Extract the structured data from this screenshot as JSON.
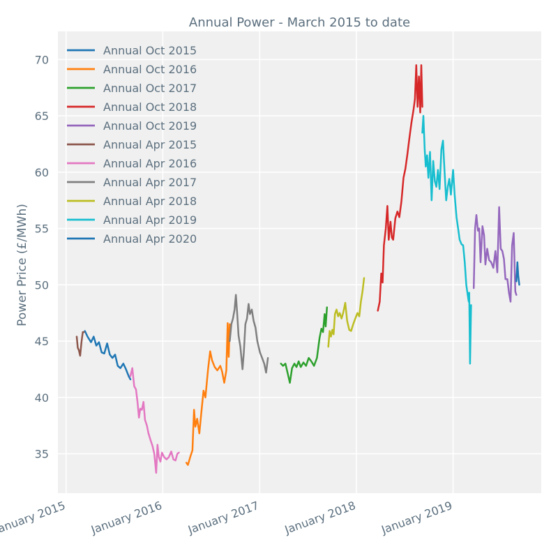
{
  "chart_data": {
    "type": "line",
    "title": "Annual Power - March 2015 to date",
    "xlabel": "",
    "ylabel": "Power Price (£/MWh)",
    "ylim": [
      31.5,
      72.5
    ],
    "yticks": [
      35,
      40,
      45,
      50,
      55,
      60,
      65,
      70
    ],
    "xlim": [
      "2014-12-01",
      "2019-11-30"
    ],
    "xticks": [
      {
        "date": "2015-01-01",
        "label": "January 2015"
      },
      {
        "date": "2016-01-01",
        "label": "January 2016"
      },
      {
        "date": "2017-01-01",
        "label": "January 2017"
      },
      {
        "date": "2018-01-01",
        "label": "January 2018"
      },
      {
        "date": "2019-01-01",
        "label": "January 2019"
      }
    ],
    "grid": true,
    "legend_position": "top-left",
    "series": [
      {
        "name": "Annual Oct 2015",
        "color": "#1f77b4",
        "points": [
          [
            "2015-03-13",
            45.9
          ],
          [
            "2015-03-23",
            45.4
          ],
          [
            "2015-04-05",
            44.9
          ],
          [
            "2015-04-15",
            45.4
          ],
          [
            "2015-04-25",
            44.6
          ],
          [
            "2015-05-05",
            44.9
          ],
          [
            "2015-05-15",
            44.0
          ],
          [
            "2015-05-25",
            43.9
          ],
          [
            "2015-06-05",
            44.8
          ],
          [
            "2015-06-15",
            43.8
          ],
          [
            "2015-06-25",
            43.5
          ],
          [
            "2015-07-05",
            43.8
          ],
          [
            "2015-07-15",
            42.8
          ],
          [
            "2015-07-25",
            42.6
          ],
          [
            "2015-08-05",
            43.0
          ],
          [
            "2015-08-15",
            42.5
          ],
          [
            "2015-08-25",
            41.9
          ],
          [
            "2015-09-01",
            41.6
          ]
        ]
      },
      {
        "name": "Annual Oct 2016",
        "color": "#ff7f0e",
        "points": [
          [
            "2016-03-30",
            34.2
          ],
          [
            "2016-04-05",
            34.0
          ],
          [
            "2016-04-15",
            34.8
          ],
          [
            "2016-04-22",
            35.3
          ],
          [
            "2016-04-28",
            38.9
          ],
          [
            "2016-05-03",
            37.4
          ],
          [
            "2016-05-10",
            38.1
          ],
          [
            "2016-05-18",
            36.8
          ],
          [
            "2016-05-25",
            38.5
          ],
          [
            "2016-06-03",
            40.6
          ],
          [
            "2016-06-10",
            40.0
          ],
          [
            "2016-06-20",
            42.5
          ],
          [
            "2016-06-28",
            44.1
          ],
          [
            "2016-07-05",
            43.3
          ],
          [
            "2016-07-15",
            42.7
          ],
          [
            "2016-07-25",
            42.4
          ],
          [
            "2016-08-05",
            42.8
          ],
          [
            "2016-08-12",
            42.3
          ],
          [
            "2016-08-20",
            41.3
          ],
          [
            "2016-08-28",
            42.4
          ],
          [
            "2016-09-02",
            46.6
          ],
          [
            "2016-09-06",
            43.6
          ],
          [
            "2016-09-10",
            46.5
          ]
        ]
      },
      {
        "name": "Annual Oct 2017",
        "color": "#2ca02c",
        "points": [
          [
            "2017-03-22",
            43.0
          ],
          [
            "2017-03-30",
            42.8
          ],
          [
            "2017-04-08",
            43.0
          ],
          [
            "2017-04-18",
            42.0
          ],
          [
            "2017-04-25",
            41.3
          ],
          [
            "2017-05-03",
            42.6
          ],
          [
            "2017-05-12",
            43.0
          ],
          [
            "2017-05-20",
            42.7
          ],
          [
            "2017-05-28",
            43.2
          ],
          [
            "2017-06-05",
            42.7
          ],
          [
            "2017-06-15",
            43.1
          ],
          [
            "2017-06-25",
            42.8
          ],
          [
            "2017-07-05",
            43.5
          ],
          [
            "2017-07-15",
            43.2
          ],
          [
            "2017-07-25",
            42.8
          ],
          [
            "2017-08-05",
            43.5
          ],
          [
            "2017-08-15",
            45.3
          ],
          [
            "2017-08-22",
            46.1
          ],
          [
            "2017-08-28",
            45.8
          ],
          [
            "2017-09-03",
            47.4
          ],
          [
            "2017-09-07",
            46.3
          ],
          [
            "2017-09-12",
            48.0
          ]
        ]
      },
      {
        "name": "Annual Oct 2018",
        "color": "#d62728",
        "points": [
          [
            "2018-03-23",
            47.7
          ],
          [
            "2018-03-30",
            48.5
          ],
          [
            "2018-04-05",
            51.0
          ],
          [
            "2018-04-10",
            50.2
          ],
          [
            "2018-04-15",
            53.5
          ],
          [
            "2018-04-22",
            55.0
          ],
          [
            "2018-04-28",
            57.0
          ],
          [
            "2018-05-03",
            54.0
          ],
          [
            "2018-05-10",
            55.6
          ],
          [
            "2018-05-15",
            54.2
          ],
          [
            "2018-05-20",
            54.0
          ],
          [
            "2018-05-28",
            55.9
          ],
          [
            "2018-06-05",
            56.5
          ],
          [
            "2018-06-12",
            56.0
          ],
          [
            "2018-06-20",
            57.4
          ],
          [
            "2018-06-28",
            59.5
          ],
          [
            "2018-07-05",
            60.3
          ],
          [
            "2018-07-12",
            61.5
          ],
          [
            "2018-07-20",
            63.0
          ],
          [
            "2018-07-28",
            64.4
          ],
          [
            "2018-08-05",
            65.6
          ],
          [
            "2018-08-10",
            66.5
          ],
          [
            "2018-08-15",
            69.5
          ],
          [
            "2018-08-20",
            65.8
          ],
          [
            "2018-08-25",
            68.5
          ],
          [
            "2018-08-30",
            65.3
          ],
          [
            "2018-09-03",
            69.5
          ],
          [
            "2018-09-07",
            65.8
          ]
        ]
      },
      {
        "name": "Annual Oct 2019",
        "color": "#9467bd",
        "points": [
          [
            "2019-03-20",
            49.7
          ],
          [
            "2019-03-25",
            55.0
          ],
          [
            "2019-03-30",
            56.2
          ],
          [
            "2019-04-05",
            54.8
          ],
          [
            "2019-04-10",
            55.0
          ],
          [
            "2019-04-15",
            52.0
          ],
          [
            "2019-04-22",
            55.2
          ],
          [
            "2019-04-28",
            54.4
          ],
          [
            "2019-05-03",
            51.8
          ],
          [
            "2019-05-10",
            53.2
          ],
          [
            "2019-05-17",
            52.2
          ],
          [
            "2019-05-25",
            52.0
          ],
          [
            "2019-06-02",
            51.5
          ],
          [
            "2019-06-10",
            53.0
          ],
          [
            "2019-06-17",
            51.1
          ],
          [
            "2019-06-24",
            56.9
          ],
          [
            "2019-06-30",
            53.2
          ],
          [
            "2019-07-06",
            53.0
          ],
          [
            "2019-07-12",
            52.3
          ],
          [
            "2019-07-18",
            50.5
          ],
          [
            "2019-07-25",
            50.5
          ],
          [
            "2019-07-31",
            49.3
          ],
          [
            "2019-08-06",
            48.5
          ],
          [
            "2019-08-12",
            53.5
          ],
          [
            "2019-08-18",
            54.6
          ],
          [
            "2019-08-24",
            49.4
          ],
          [
            "2019-08-28",
            49.1
          ]
        ]
      },
      {
        "name": "Annual Apr 2015",
        "color": "#8c564b",
        "points": [
          [
            "2015-02-10",
            45.4
          ],
          [
            "2015-02-14",
            44.4
          ],
          [
            "2015-02-18",
            44.2
          ],
          [
            "2015-02-23",
            43.7
          ],
          [
            "2015-02-28",
            44.9
          ],
          [
            "2015-03-05",
            45.8
          ],
          [
            "2015-03-09",
            45.8
          ]
        ]
      },
      {
        "name": "Annual Apr 2016",
        "color": "#e377c2",
        "points": [
          [
            "2015-09-01",
            41.9
          ],
          [
            "2015-09-08",
            42.6
          ],
          [
            "2015-09-15",
            41.0
          ],
          [
            "2015-09-22",
            40.7
          ],
          [
            "2015-09-28",
            39.5
          ],
          [
            "2015-10-03",
            38.2
          ],
          [
            "2015-10-08",
            39.0
          ],
          [
            "2015-10-14",
            38.9
          ],
          [
            "2015-10-20",
            39.6
          ],
          [
            "2015-10-26",
            38.0
          ],
          [
            "2015-11-02",
            37.5
          ],
          [
            "2015-11-08",
            36.8
          ],
          [
            "2015-11-16",
            36.2
          ],
          [
            "2015-11-23",
            35.7
          ],
          [
            "2015-11-30",
            35.0
          ],
          [
            "2015-12-07",
            33.3
          ],
          [
            "2015-12-12",
            35.8
          ],
          [
            "2015-12-17",
            34.7
          ],
          [
            "2015-12-23",
            34.3
          ],
          [
            "2015-12-29",
            35.1
          ],
          [
            "2016-01-06",
            34.7
          ],
          [
            "2016-01-15",
            34.5
          ],
          [
            "2016-01-24",
            34.7
          ],
          [
            "2016-02-02",
            35.2
          ],
          [
            "2016-02-10",
            34.5
          ],
          [
            "2016-02-18",
            34.4
          ],
          [
            "2016-02-25",
            35.0
          ],
          [
            "2016-03-02",
            35.1
          ]
        ]
      },
      {
        "name": "Annual Apr 2017",
        "color": "#7f7f7f",
        "points": [
          [
            "2016-09-10",
            45.0
          ],
          [
            "2016-09-16",
            46.5
          ],
          [
            "2016-09-22",
            47.0
          ],
          [
            "2016-09-28",
            47.8
          ],
          [
            "2016-10-03",
            49.1
          ],
          [
            "2016-10-08",
            47.4
          ],
          [
            "2016-10-13",
            45.5
          ],
          [
            "2016-10-20",
            44.5
          ],
          [
            "2016-10-28",
            42.5
          ],
          [
            "2016-11-02",
            44.0
          ],
          [
            "2016-11-08",
            46.5
          ],
          [
            "2016-11-14",
            47.0
          ],
          [
            "2016-11-20",
            48.3
          ],
          [
            "2016-11-25",
            47.4
          ],
          [
            "2016-12-02",
            47.8
          ],
          [
            "2016-12-09",
            46.8
          ],
          [
            "2016-12-16",
            46.2
          ],
          [
            "2016-12-23",
            45.0
          ],
          [
            "2017-01-02",
            44.0
          ],
          [
            "2017-01-10",
            43.5
          ],
          [
            "2017-01-18",
            43.0
          ],
          [
            "2017-01-25",
            42.2
          ],
          [
            "2017-02-01",
            43.5
          ]
        ]
      },
      {
        "name": "Annual Apr 2018",
        "color": "#bcbd22",
        "points": [
          [
            "2017-09-17",
            44.5
          ],
          [
            "2017-09-22",
            45.9
          ],
          [
            "2017-09-27",
            45.4
          ],
          [
            "2017-10-02",
            46.0
          ],
          [
            "2017-10-07",
            45.6
          ],
          [
            "2017-10-12",
            47.4
          ],
          [
            "2017-10-18",
            47.8
          ],
          [
            "2017-10-24",
            47.2
          ],
          [
            "2017-10-30",
            47.5
          ],
          [
            "2017-11-06",
            47.0
          ],
          [
            "2017-11-12",
            47.5
          ],
          [
            "2017-11-20",
            48.4
          ],
          [
            "2017-11-27",
            46.8
          ],
          [
            "2017-12-05",
            46.0
          ],
          [
            "2017-12-12",
            45.9
          ],
          [
            "2017-12-20",
            46.5
          ],
          [
            "2017-12-28",
            47.0
          ],
          [
            "2018-01-05",
            47.5
          ],
          [
            "2018-01-12",
            47.2
          ],
          [
            "2018-01-18",
            48.5
          ],
          [
            "2018-01-24",
            49.4
          ],
          [
            "2018-01-30",
            50.6
          ]
        ]
      },
      {
        "name": "Annual Apr 2019",
        "color": "#17becf",
        "points": [
          [
            "2018-09-07",
            63.5
          ],
          [
            "2018-09-11",
            65.0
          ],
          [
            "2018-09-16",
            62.0
          ],
          [
            "2018-09-20",
            60.5
          ],
          [
            "2018-09-25",
            61.5
          ],
          [
            "2018-09-30",
            59.5
          ],
          [
            "2018-10-06",
            61.8
          ],
          [
            "2018-10-12",
            57.5
          ],
          [
            "2018-10-18",
            61.0
          ],
          [
            "2018-10-24",
            59.2
          ],
          [
            "2018-10-30",
            58.7
          ],
          [
            "2018-11-05",
            60.2
          ],
          [
            "2018-11-11",
            58.5
          ],
          [
            "2018-11-18",
            62.0
          ],
          [
            "2018-11-24",
            62.8
          ],
          [
            "2018-11-30",
            60.0
          ],
          [
            "2018-12-06",
            57.5
          ],
          [
            "2018-12-12",
            58.7
          ],
          [
            "2018-12-18",
            59.4
          ],
          [
            "2018-12-24",
            58.0
          ],
          [
            "2019-01-01",
            60.2
          ],
          [
            "2019-01-07",
            58.0
          ],
          [
            "2019-01-14",
            56.0
          ],
          [
            "2019-01-20",
            55.0
          ],
          [
            "2019-01-26",
            54.0
          ],
          [
            "2019-02-02",
            53.6
          ],
          [
            "2019-02-08",
            53.5
          ],
          [
            "2019-02-14",
            52.0
          ],
          [
            "2019-02-20",
            50.0
          ],
          [
            "2019-02-26",
            49.0
          ],
          [
            "2019-03-01",
            48.5
          ],
          [
            "2019-03-03",
            49.3
          ],
          [
            "2019-03-06",
            43.0
          ],
          [
            "2019-03-10",
            48.2
          ]
        ]
      },
      {
        "name": "Annual Apr 2020",
        "color": "#1f77b4",
        "points": [
          [
            "2019-08-28",
            50.3
          ],
          [
            "2019-09-01",
            52.0
          ],
          [
            "2019-09-04",
            50.8
          ],
          [
            "2019-09-08",
            50.0
          ]
        ]
      }
    ]
  }
}
